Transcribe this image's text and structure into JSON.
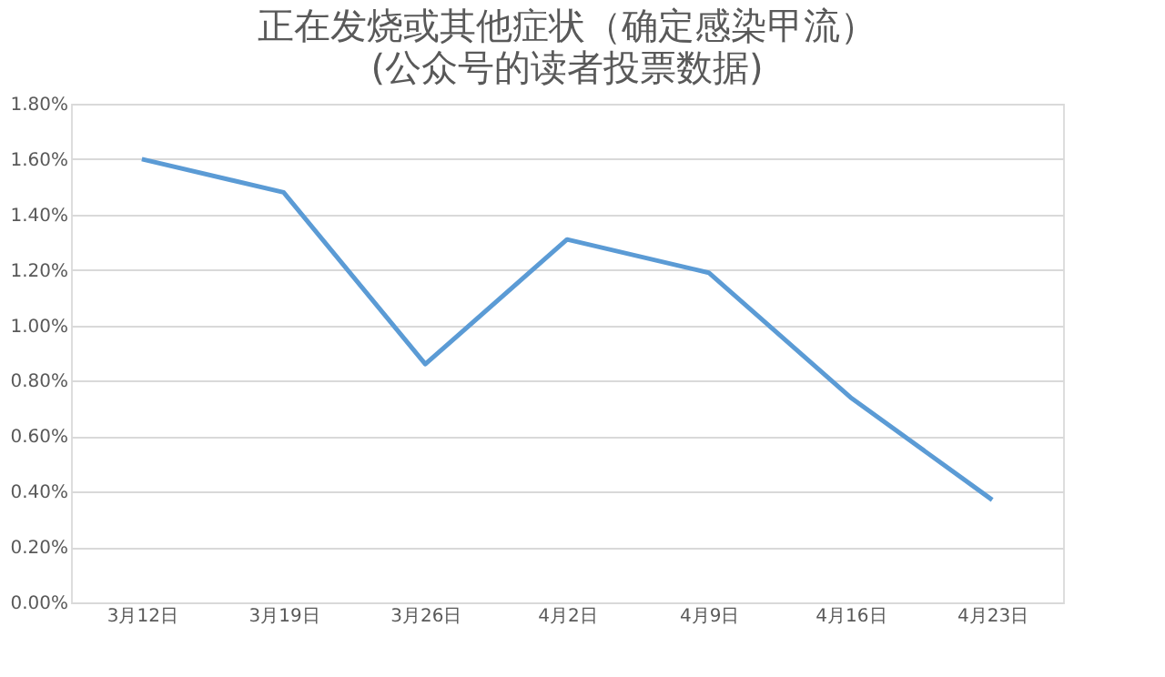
{
  "chart_data": {
    "type": "line",
    "title": "正在发烧或其他症状（确定感染甲流）",
    "subtitle": "(公众号的读者投票数据)",
    "categories": [
      "3月12日",
      "3月19日",
      "3月26日",
      "4月2日",
      "4月9日",
      "4月16日",
      "4月23日"
    ],
    "series": [
      {
        "color": "#5b9bd5",
        "values": [
          1.6,
          1.48,
          0.86,
          1.31,
          1.19,
          0.74,
          0.37
        ]
      }
    ],
    "ylim": [
      0,
      1.8
    ],
    "yticks": [
      {
        "value": 0,
        "label": "0.00%"
      },
      {
        "value": 0.2,
        "label": "0.20%"
      },
      {
        "value": 0.4,
        "label": "0.40%"
      },
      {
        "value": 0.6,
        "label": "0.60%"
      },
      {
        "value": 0.8,
        "label": "0.80%"
      },
      {
        "value": 1.0,
        "label": "1.00%"
      },
      {
        "value": 1.2,
        "label": "1.20%"
      },
      {
        "value": 1.4,
        "label": "1.40%"
      },
      {
        "value": 1.6,
        "label": "1.60%"
      },
      {
        "value": 1.8,
        "label": "1.80%"
      }
    ],
    "grid": "y",
    "marker": "none",
    "line_style": "solid"
  }
}
